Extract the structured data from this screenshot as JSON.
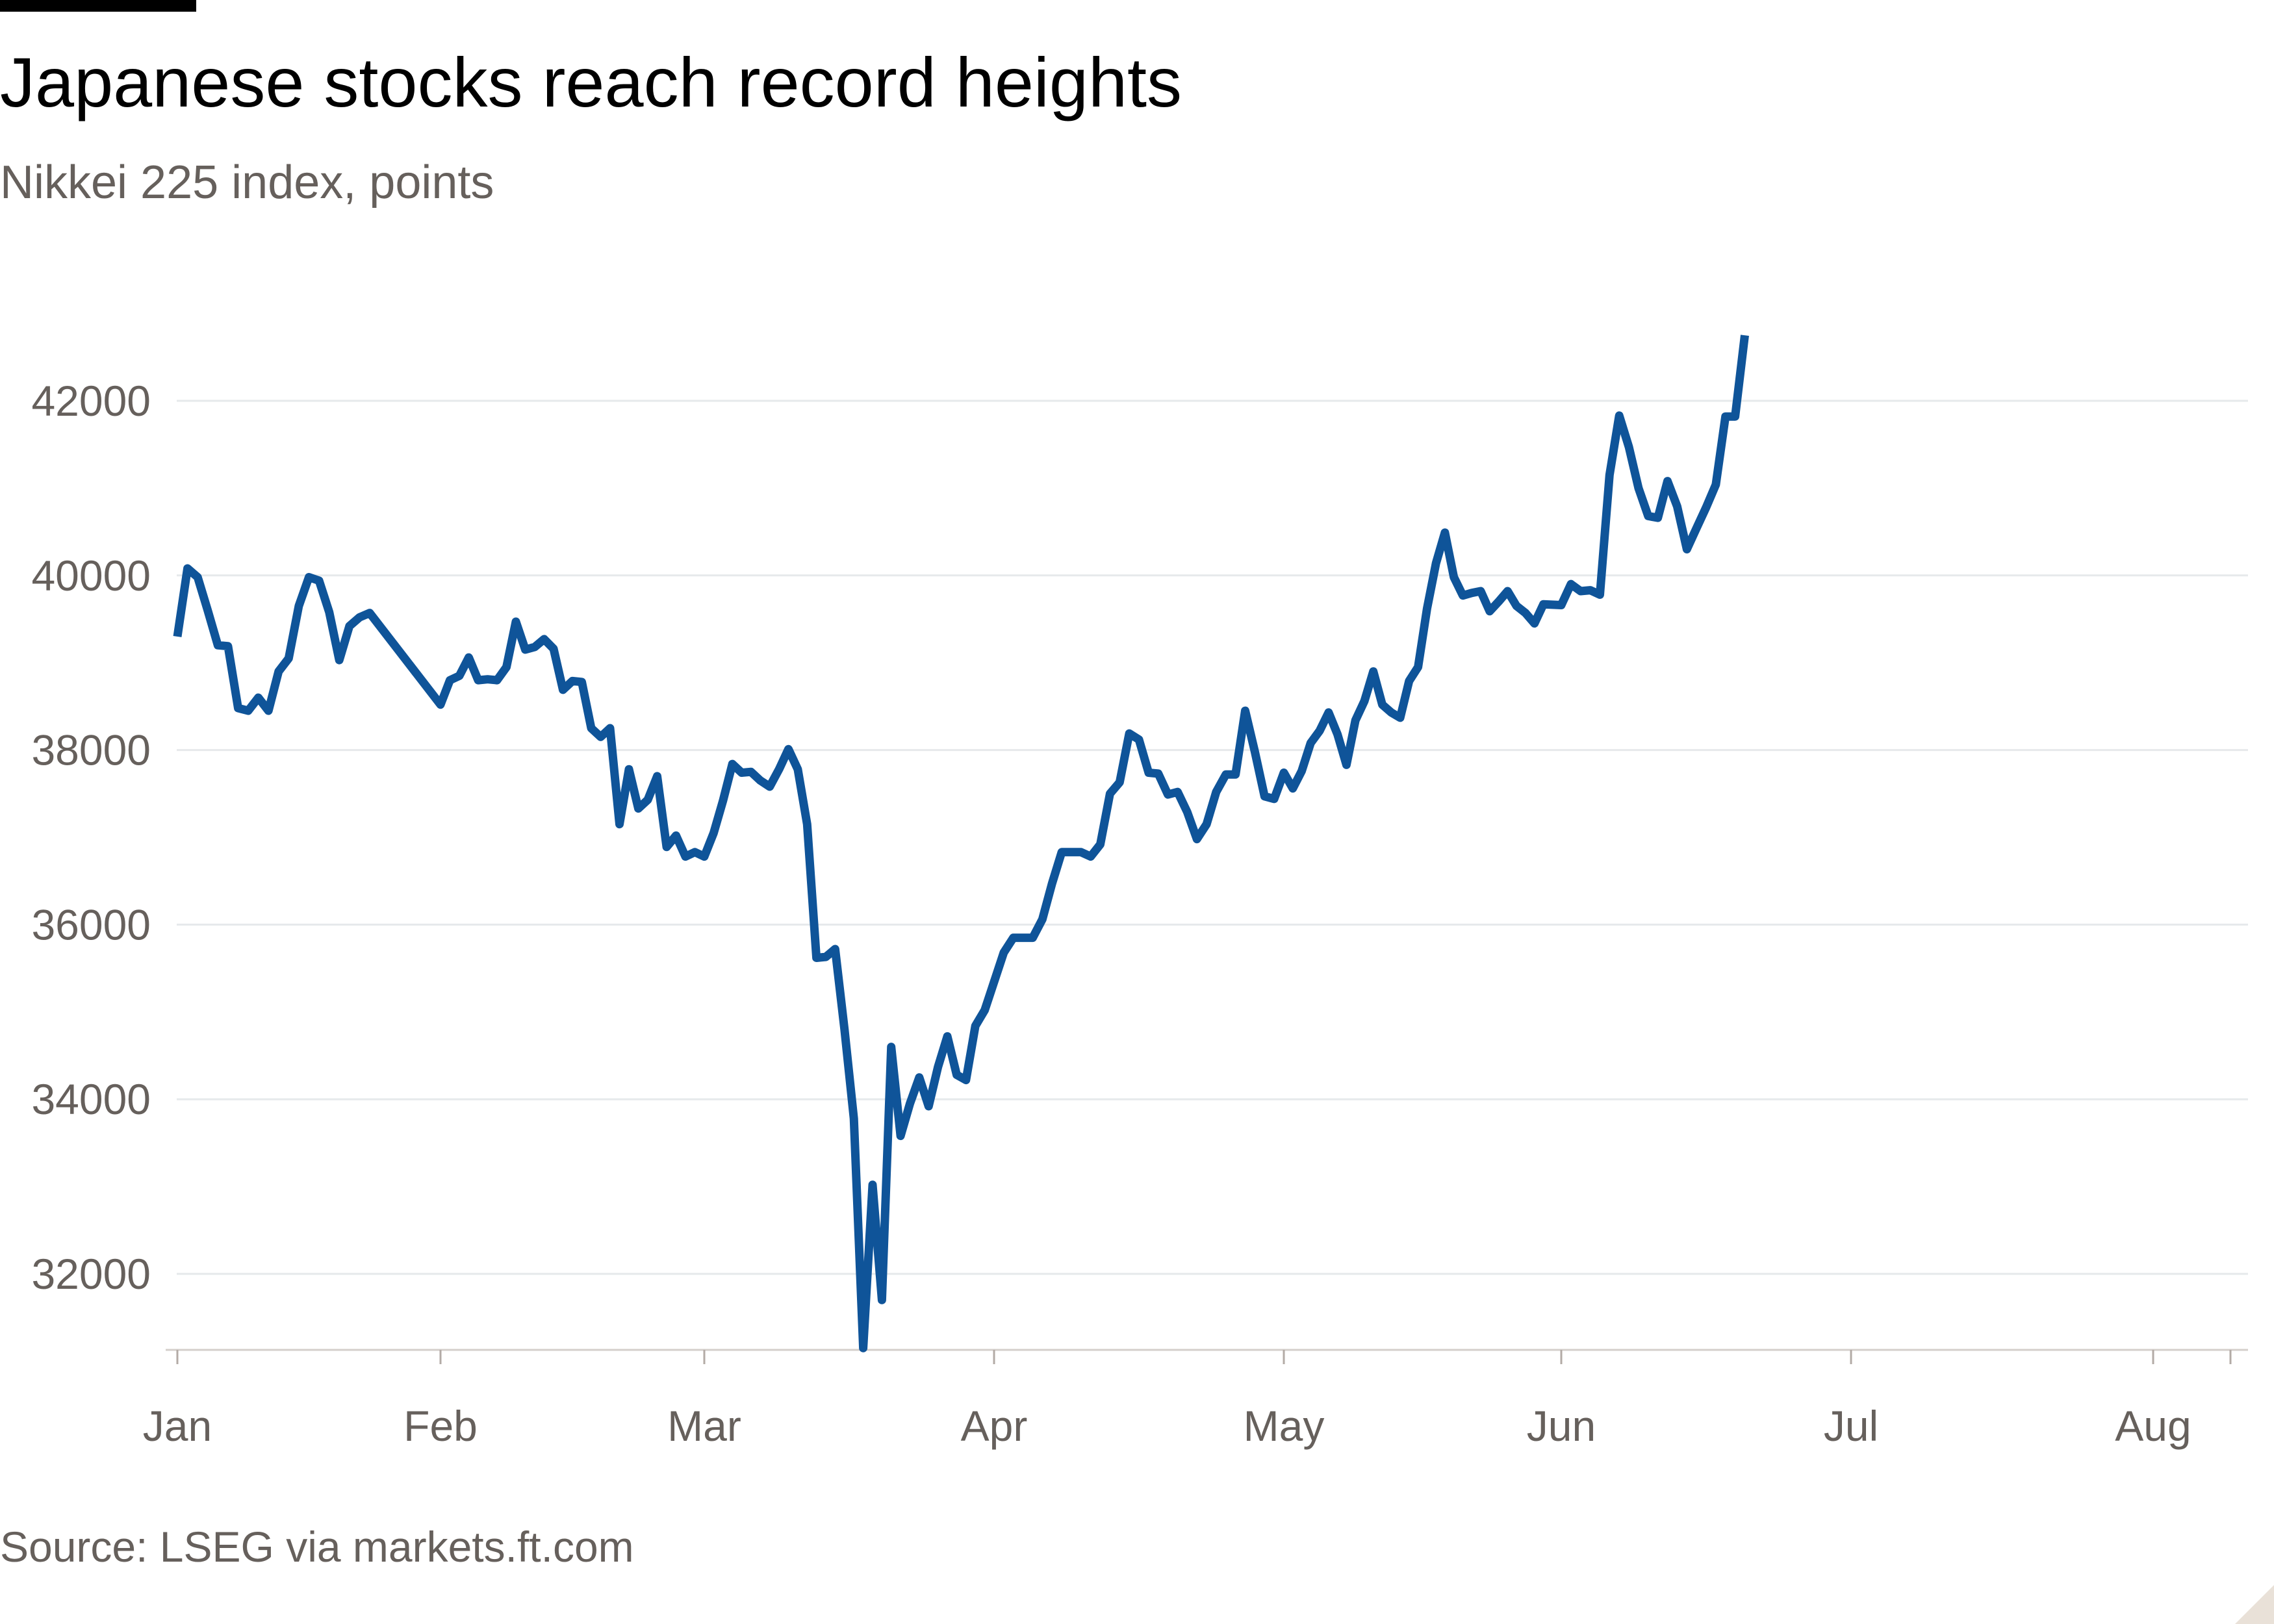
{
  "title": "Japanese stocks reach record heights",
  "subtitle": "Nikkei 225 index, points",
  "source": "Source: LSEG via markets.ft.com",
  "colors": {
    "line": "#0f5499",
    "grid": "#e6e9eb",
    "text": "#66605c",
    "title": "#000000"
  },
  "chart_data": {
    "type": "line",
    "title": "Japanese stocks reach record heights",
    "subtitle": "Nikkei 225 index, points",
    "xlabel": "",
    "ylabel": "",
    "x_range": [
      "2025-01-06",
      "2025-08-13"
    ],
    "ylim": [
      31100,
      43100
    ],
    "y_ticks": [
      32000,
      34000,
      36000,
      38000,
      40000,
      42000
    ],
    "y_tick_labels": [
      "32000",
      "34000",
      "36000",
      "38000",
      "40000",
      "42000"
    ],
    "x_ticks": [
      {
        "label": "Jan",
        "date": "2025-01-06"
      },
      {
        "label": "Feb",
        "date": "2025-02-01"
      },
      {
        "label": "Mar",
        "date": "2025-03-01"
      },
      {
        "label": "Apr",
        "date": "2025-04-01"
      },
      {
        "label": "May",
        "date": "2025-05-01"
      },
      {
        "label": "Jun",
        "date": "2025-06-01"
      },
      {
        "label": "Jul",
        "date": "2025-07-01"
      },
      {
        "label": "Aug",
        "date": "2025-08-01"
      }
    ],
    "grid": true,
    "series": [
      {
        "points": [
          [
            "2025-01-06",
            39300
          ],
          [
            "2025-01-07",
            40080
          ],
          [
            "2025-01-08",
            39980
          ],
          [
            "2025-01-09",
            39600
          ],
          [
            "2025-01-10",
            39200
          ],
          [
            "2025-01-11",
            39190
          ],
          [
            "2025-01-12",
            38480
          ],
          [
            "2025-01-13",
            38450
          ],
          [
            "2025-01-14",
            38600
          ],
          [
            "2025-01-15",
            38450
          ],
          [
            "2025-01-16",
            38900
          ],
          [
            "2025-01-17",
            39050
          ],
          [
            "2025-01-18",
            39650
          ],
          [
            "2025-01-19",
            39980
          ],
          [
            "2025-01-20",
            39940
          ],
          [
            "2025-01-21",
            39580
          ],
          [
            "2025-01-22",
            39030
          ],
          [
            "2025-01-23",
            39420
          ],
          [
            "2025-01-24",
            39520
          ],
          [
            "2025-01-25",
            39570
          ],
          [
            "2025-02-01",
            38520
          ],
          [
            "2025-02-02",
            38800
          ],
          [
            "2025-02-03",
            38850
          ],
          [
            "2025-02-04",
            39060
          ],
          [
            "2025-02-05",
            38800
          ],
          [
            "2025-02-06",
            38810
          ],
          [
            "2025-02-07",
            38800
          ],
          [
            "2025-02-08",
            38950
          ],
          [
            "2025-02-09",
            39470
          ],
          [
            "2025-02-10",
            39150
          ],
          [
            "2025-02-11",
            39180
          ],
          [
            "2025-02-12",
            39270
          ],
          [
            "2025-02-13",
            39160
          ],
          [
            "2025-02-14",
            38690
          ],
          [
            "2025-02-15",
            38790
          ],
          [
            "2025-02-16",
            38780
          ],
          [
            "2025-02-17",
            38250
          ],
          [
            "2025-02-18",
            38150
          ],
          [
            "2025-02-19",
            38250
          ],
          [
            "2025-02-20",
            37150
          ],
          [
            "2025-02-21",
            37780
          ],
          [
            "2025-02-22",
            37330
          ],
          [
            "2025-02-23",
            37430
          ],
          [
            "2025-02-24",
            37700
          ],
          [
            "2025-02-25",
            36890
          ],
          [
            "2025-02-26",
            37020
          ],
          [
            "2025-02-27",
            36780
          ],
          [
            "2025-02-28",
            36830
          ],
          [
            "2025-03-01",
            36780
          ],
          [
            "2025-03-02",
            37050
          ],
          [
            "2025-03-03",
            37420
          ],
          [
            "2025-03-04",
            37840
          ],
          [
            "2025-03-05",
            37740
          ],
          [
            "2025-03-06",
            37750
          ],
          [
            "2025-03-07",
            37650
          ],
          [
            "2025-03-08",
            37580
          ],
          [
            "2025-03-09",
            37780
          ],
          [
            "2025-03-10",
            38010
          ],
          [
            "2025-03-11",
            37780
          ],
          [
            "2025-03-12",
            37150
          ],
          [
            "2025-03-13",
            35620
          ],
          [
            "2025-03-14",
            35630
          ],
          [
            "2025-03-15",
            35720
          ],
          [
            "2025-03-16",
            34800
          ],
          [
            "2025-03-17",
            33780
          ],
          [
            "2025-03-18",
            31150
          ],
          [
            "2025-03-19",
            33020
          ],
          [
            "2025-03-20",
            31700
          ],
          [
            "2025-03-21",
            34600
          ],
          [
            "2025-03-22",
            33580
          ],
          [
            "2025-03-23",
            33950
          ],
          [
            "2025-03-24",
            34250
          ],
          [
            "2025-03-25",
            33920
          ],
          [
            "2025-03-26",
            34370
          ],
          [
            "2025-03-27",
            34720
          ],
          [
            "2025-03-28",
            34280
          ],
          [
            "2025-03-29",
            34220
          ],
          [
            "2025-03-30",
            34840
          ],
          [
            "2025-03-31",
            35020
          ],
          [
            "2025-04-02",
            35680
          ],
          [
            "2025-04-03",
            35850
          ],
          [
            "2025-04-05",
            35850
          ],
          [
            "2025-04-06",
            36060
          ],
          [
            "2025-04-07",
            36470
          ],
          [
            "2025-04-08",
            36830
          ],
          [
            "2025-04-09",
            36830
          ],
          [
            "2025-04-10",
            36830
          ],
          [
            "2025-04-11",
            36780
          ],
          [
            "2025-04-12",
            36920
          ],
          [
            "2025-04-13",
            37500
          ],
          [
            "2025-04-14",
            37630
          ],
          [
            "2025-04-15",
            38190
          ],
          [
            "2025-04-16",
            38120
          ],
          [
            "2025-04-17",
            37740
          ],
          [
            "2025-04-18",
            37730
          ],
          [
            "2025-04-19",
            37490
          ],
          [
            "2025-04-20",
            37520
          ],
          [
            "2025-04-21",
            37290
          ],
          [
            "2025-04-22",
            36980
          ],
          [
            "2025-04-23",
            37150
          ],
          [
            "2025-04-24",
            37520
          ],
          [
            "2025-04-25",
            37720
          ],
          [
            "2025-04-26",
            37720
          ],
          [
            "2025-04-27",
            38450
          ],
          [
            "2025-04-28",
            37980
          ],
          [
            "2025-04-29",
            37470
          ],
          [
            "2025-04-30",
            37440
          ],
          [
            "2025-05-01",
            37740
          ],
          [
            "2025-05-02",
            37560
          ],
          [
            "2025-05-03",
            37760
          ],
          [
            "2025-05-04",
            38080
          ],
          [
            "2025-05-05",
            38220
          ],
          [
            "2025-05-06",
            38430
          ],
          [
            "2025-05-07",
            38180
          ],
          [
            "2025-05-08",
            37830
          ],
          [
            "2025-05-09",
            38340
          ],
          [
            "2025-05-10",
            38560
          ],
          [
            "2025-05-11",
            38900
          ],
          [
            "2025-05-12",
            38520
          ],
          [
            "2025-05-13",
            38430
          ],
          [
            "2025-05-14",
            38370
          ],
          [
            "2025-05-15",
            38790
          ],
          [
            "2025-05-16",
            38950
          ],
          [
            "2025-05-17",
            39620
          ],
          [
            "2025-05-18",
            40140
          ],
          [
            "2025-05-19",
            40490
          ],
          [
            "2025-05-20",
            39980
          ],
          [
            "2025-05-21",
            39770
          ],
          [
            "2025-05-22",
            39800
          ],
          [
            "2025-05-23",
            39820
          ],
          [
            "2025-05-24",
            39590
          ],
          [
            "2025-05-25",
            39700
          ],
          [
            "2025-05-26",
            39820
          ],
          [
            "2025-05-27",
            39650
          ],
          [
            "2025-05-28",
            39570
          ],
          [
            "2025-05-29",
            39450
          ],
          [
            "2025-05-30",
            39670
          ],
          [
            "2025-06-01",
            39660
          ],
          [
            "2025-06-02",
            39900
          ],
          [
            "2025-06-03",
            39820
          ],
          [
            "2025-06-04",
            39830
          ],
          [
            "2025-06-05",
            39780
          ],
          [
            "2025-06-06",
            41150
          ],
          [
            "2025-06-07",
            41830
          ],
          [
            "2025-06-08",
            41470
          ],
          [
            "2025-06-09",
            41000
          ],
          [
            "2025-06-10",
            40680
          ],
          [
            "2025-06-11",
            40660
          ],
          [
            "2025-06-12",
            41080
          ],
          [
            "2025-06-13",
            40790
          ],
          [
            "2025-06-14",
            40300
          ],
          [
            "2025-06-15",
            40540
          ],
          [
            "2025-06-16",
            40780
          ],
          [
            "2025-06-17",
            41040
          ],
          [
            "2025-06-18",
            41820
          ],
          [
            "2025-06-19",
            41820
          ],
          [
            "2025-06-20",
            42750
          ]
        ]
      }
    ]
  }
}
